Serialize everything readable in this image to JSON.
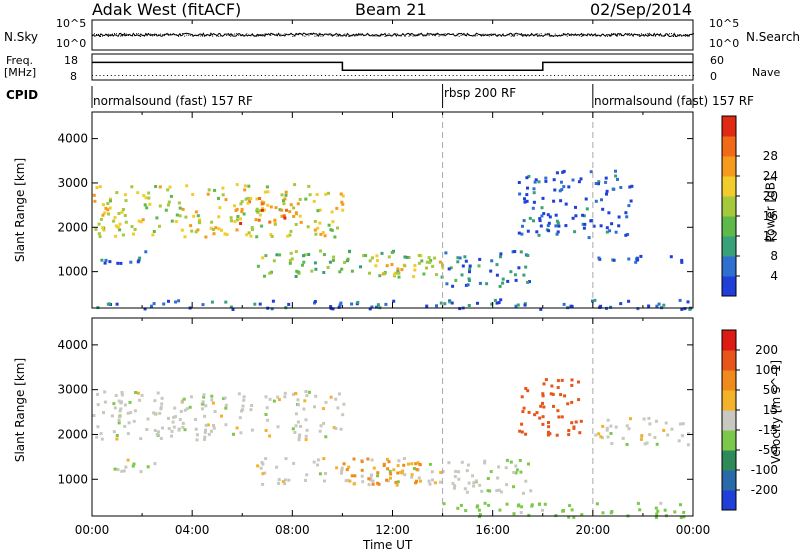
{
  "header": {
    "site": "Adak West (fitACF)",
    "beam": "Beam 21",
    "date": "02/Sep/2014"
  },
  "noise_panel": {
    "left_label": "N.Sky",
    "right_label": "N.Search",
    "left_ticks": [
      "10^5",
      "10^0"
    ],
    "right_ticks": [
      "10^5",
      "10^0"
    ]
  },
  "freq_panel": {
    "left_label_1": "Freq.",
    "left_label_2": "[MHz]",
    "left_ticks": [
      "18",
      "8"
    ],
    "right_label": "Nave",
    "right_ticks": [
      "60",
      "0"
    ]
  },
  "cpid": {
    "label": "CPID",
    "segments": [
      {
        "name": "normalsound (fast) 157 RF",
        "start_hour": 0,
        "end_hour": 14.0
      },
      {
        "name": "rbsp 200 RF",
        "start_hour": 14.0,
        "end_hour": 20.0
      },
      {
        "name": "normalsound (fast) 157 RF",
        "start_hour": 20.0,
        "end_hour": 24
      }
    ]
  },
  "x_axis": {
    "label": "Time UT",
    "ticks": [
      "00:00",
      "04:00",
      "08:00",
      "12:00",
      "16:00",
      "20:00",
      "00:00"
    ]
  },
  "y_axis": {
    "label": "Slant Range [km]",
    "ticks": [
      "1000",
      "2000",
      "3000",
      "4000"
    ]
  },
  "power_scale": {
    "label": "Power [dB]",
    "ticks": [
      "4",
      "8",
      "12",
      "16",
      "20",
      "24",
      "28"
    ],
    "colors": [
      "#1f3fd8",
      "#2e6fd0",
      "#3aa07a",
      "#5fb84a",
      "#a6c83c",
      "#f2cc2a",
      "#f59a1c",
      "#f06a18",
      "#e02a14"
    ]
  },
  "velocity_scale": {
    "label": "Velocity [m s^-1]",
    "ticks": [
      "200",
      "100",
      "50",
      "15",
      "-15",
      "-50",
      "-100",
      "-200"
    ],
    "colors": [
      "#1f3fd8",
      "#2a6aa8",
      "#2f8a5a",
      "#7cc84a",
      "#c8c8c0",
      "#f2b22a",
      "#f08a1c",
      "#e8541a",
      "#dd1a14"
    ]
  },
  "chart_data": [
    {
      "type": "line",
      "title": "Noise (N.Sky / N.Search)",
      "x": [
        0,
        2,
        4,
        6,
        8,
        10,
        12,
        14,
        16,
        18,
        20,
        22,
        24
      ],
      "series": [
        {
          "name": "N.Sky",
          "values": [
            3.0,
            3.1,
            3.2,
            3.2,
            3.3,
            3.1,
            3.2,
            3.3,
            3.2,
            3.1,
            3.2,
            3.1,
            3.0
          ]
        }
      ]
    },
    {
      "type": "line",
      "title": "Frequency",
      "x": [
        0,
        10,
        10,
        18,
        18,
        24
      ],
      "series": [
        {
          "name": "Freq.",
          "values": [
            14.5,
            14.5,
            11.2,
            11.2,
            14.5,
            14.5
          ]
        },
        {
          "name": "Nave",
          "values": [
            3,
            3,
            3,
            3,
            3,
            3
          ]
        }
      ]
    },
    {
      "type": "heatmap",
      "title": "Power",
      "xlabel": "Time UT",
      "ylabel": "Slant Range [km]",
      "xlim": [
        0,
        24
      ],
      "ylim": [
        180,
        4600
      ],
      "blobs": [
        {
          "x0": 0.0,
          "x1": 10.0,
          "r0": 1800,
          "r1": 3000,
          "level": 18
        },
        {
          "x0": 5.5,
          "x1": 8.0,
          "r0": 2100,
          "r1": 2700,
          "level": 24
        },
        {
          "x0": 0.3,
          "x1": 2.5,
          "r0": 1200,
          "r1": 1500,
          "level": 6
        },
        {
          "x0": 6.5,
          "x1": 14.0,
          "r0": 900,
          "r1": 1500,
          "level": 14
        },
        {
          "x0": 11.0,
          "x1": 14.0,
          "r0": 950,
          "r1": 1350,
          "level": 20
        },
        {
          "x0": 14.0,
          "x1": 17.5,
          "r0": 700,
          "r1": 1500,
          "level": 7
        },
        {
          "x0": 17.0,
          "x1": 21.5,
          "r0": 1800,
          "r1": 3300,
          "level": 5
        },
        {
          "x0": 20.0,
          "x1": 24.0,
          "r0": 1200,
          "r1": 1400,
          "level": 5
        },
        {
          "x0": 0.0,
          "x1": 24.0,
          "r0": 180,
          "r1": 400,
          "level": 6
        }
      ]
    },
    {
      "type": "heatmap",
      "title": "Velocity",
      "xlabel": "Time UT",
      "ylabel": "Slant Range [km]",
      "xlim": [
        0,
        24
      ],
      "ylim": [
        180,
        4600
      ],
      "blobs": [
        {
          "x0": 0.0,
          "x1": 10.0,
          "r0": 1900,
          "r1": 3000,
          "level": 0
        },
        {
          "x0": 0.3,
          "x1": 2.5,
          "r0": 1200,
          "r1": 1500,
          "level": 0
        },
        {
          "x0": 6.5,
          "x1": 14.0,
          "r0": 900,
          "r1": 1500,
          "level": 0
        },
        {
          "x0": 10.0,
          "x1": 13.5,
          "r0": 900,
          "r1": 1500,
          "level": -60
        },
        {
          "x0": 14.0,
          "x1": 17.5,
          "r0": 700,
          "r1": 1500,
          "level": 10
        },
        {
          "x0": 17.0,
          "x1": 19.5,
          "r0": 2000,
          "r1": 3300,
          "level": -180
        },
        {
          "x0": 20.0,
          "x1": 24.0,
          "r0": 1800,
          "r1": 2400,
          "level": 0
        },
        {
          "x0": 14.0,
          "x1": 24.0,
          "r0": 180,
          "r1": 500,
          "level": 30
        }
      ]
    }
  ]
}
